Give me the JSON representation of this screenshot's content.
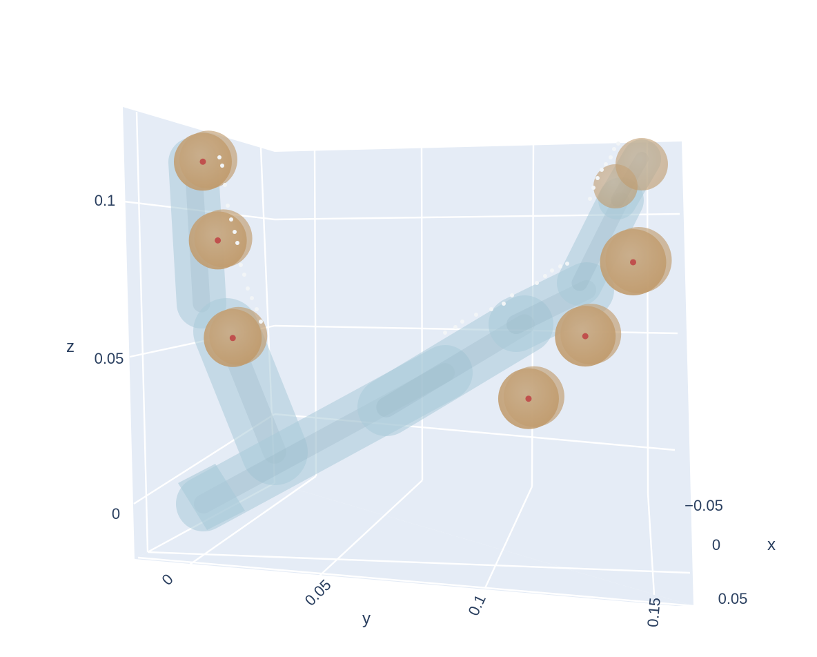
{
  "chart_data": {
    "type": "scatter",
    "subtype": "3d-scene",
    "axes": {
      "x": {
        "title": "x",
        "ticks": [
          "−0.05",
          "0",
          "0.05"
        ],
        "range": [
          -0.06,
          0.06
        ]
      },
      "y": {
        "title": "y",
        "ticks": [
          "0",
          "0.05",
          "0.1",
          "0.15"
        ],
        "range": [
          -0.01,
          0.16
        ]
      },
      "z": {
        "title": "z",
        "ticks": [
          "0",
          "0.05",
          "0.1"
        ],
        "range": [
          -0.01,
          0.13
        ]
      }
    },
    "background_color": "#e5ecf6",
    "grid": true,
    "colors": {
      "link_mesh": "#a9cad8",
      "collision_sphere": "#c8a57a",
      "sphere_center": "#c0504d",
      "surface_points": "#f2f5f7"
    },
    "sphere_centers": [
      {
        "y": 0.006,
        "z": 0.112
      },
      {
        "y": 0.011,
        "z": 0.088
      },
      {
        "y": 0.016,
        "z": 0.058
      },
      {
        "y": 0.115,
        "z": 0.06
      },
      {
        "y": 0.134,
        "z": 0.084
      },
      {
        "y": 0.15,
        "z": 0.111
      }
    ]
  }
}
